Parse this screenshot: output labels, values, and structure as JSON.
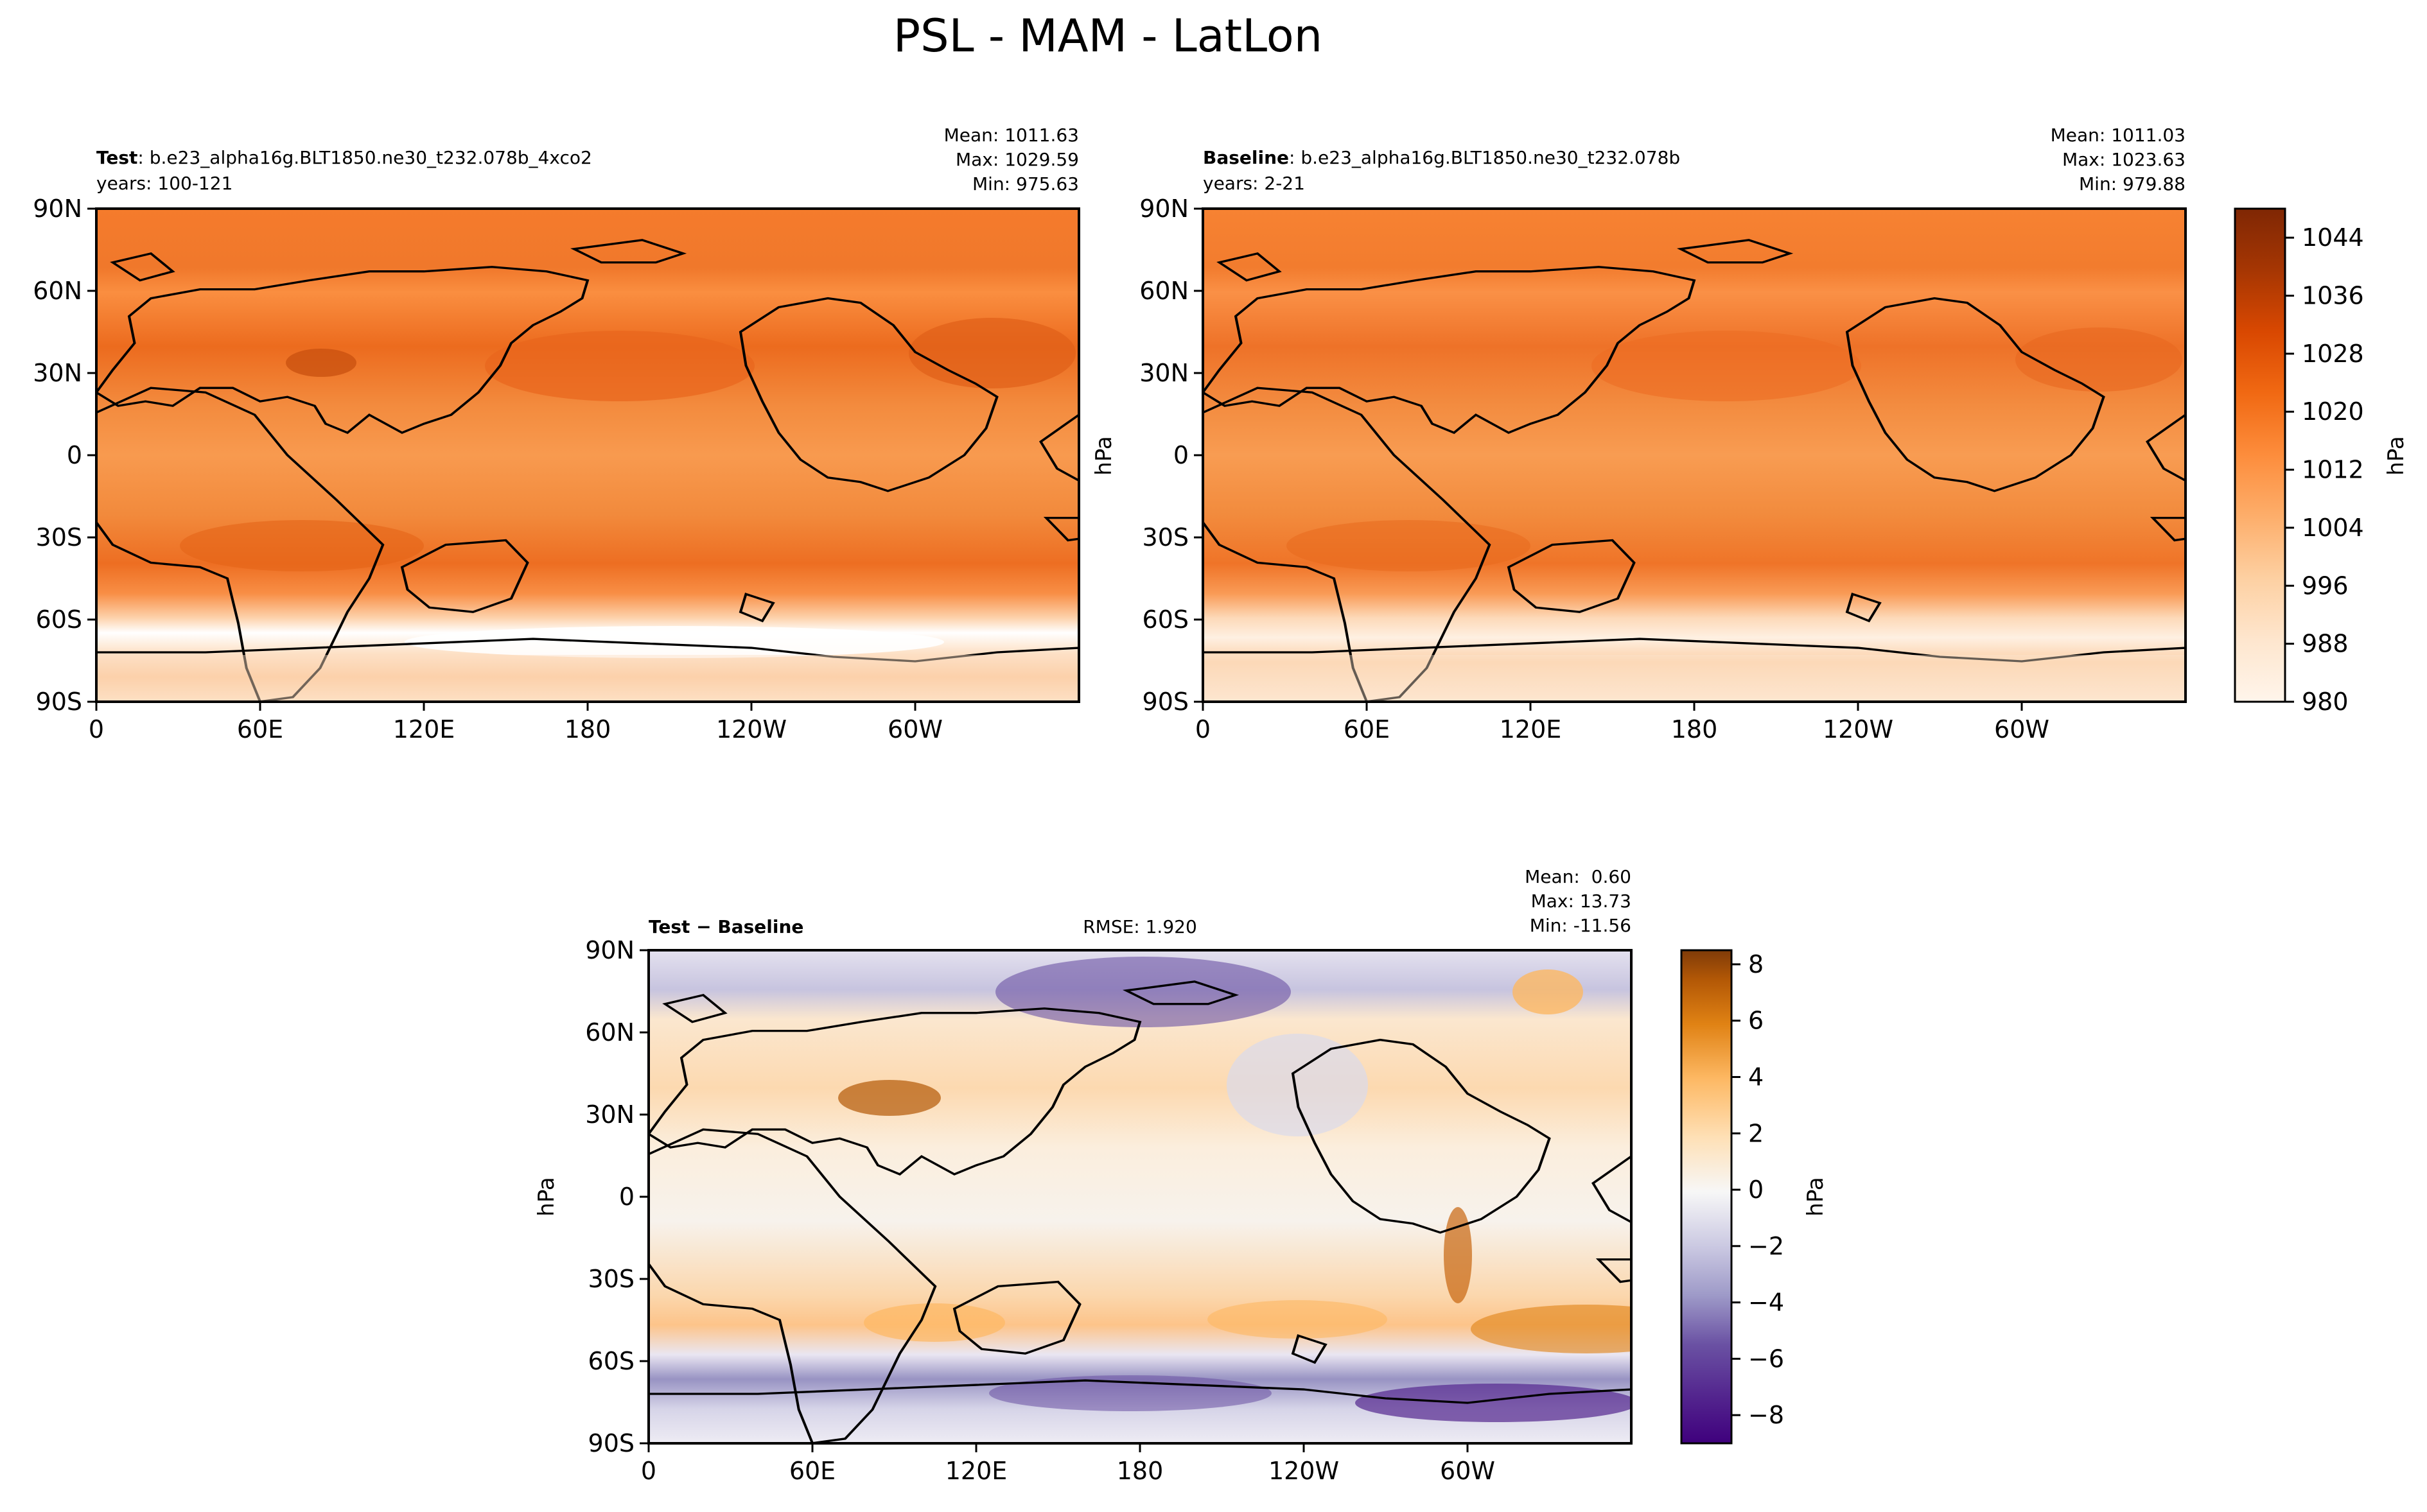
{
  "figure": {
    "title": "PSL - MAM - LatLon"
  },
  "colors": {
    "psl_scale": [
      "#fff5eb",
      "#fee6ce",
      "#fdd0a2",
      "#fdae6b",
      "#fd8d3c",
      "#f16913",
      "#d94801",
      "#a63603",
      "#7f2704"
    ],
    "diff_scale_neg": [
      "#3f007d",
      "#54278f",
      "#6a51a3",
      "#807dba",
      "#9e9ac8",
      "#bcbddc",
      "#dadaeb",
      "#efedf5",
      "#f7f7f7"
    ],
    "diff_scale_pos": [
      "#f7f7f7",
      "#fee0b6",
      "#fdb863",
      "#e08214",
      "#b35806",
      "#7f3b08"
    ],
    "land_outline": "#000000"
  },
  "chart_data": [
    {
      "type": "heatmap",
      "panel": "test",
      "label_bold": "Test",
      "label_text": ": b.e23_alpha16g.BLT1850.ne30_t232.078b_4xco2",
      "years": "years: 100-121",
      "stats": {
        "mean": "Mean: 1011.63",
        "max": "Max: 1029.59",
        "min": "Min: 975.63"
      },
      "lat_ticks": [
        "90N",
        "60N",
        "30N",
        "0",
        "30S",
        "60S",
        "90S"
      ],
      "lon_ticks": [
        "0",
        "60E",
        "120E",
        "180",
        "120W",
        "60W"
      ],
      "lat_range": [
        -90,
        90
      ],
      "lon_range": [
        0,
        360
      ],
      "colormap": "Oranges",
      "vmin": 980,
      "vmax": 1048,
      "zonal_mean_profile": [
        {
          "lat": 90,
          "value": 1016
        },
        {
          "lat": 60,
          "value": 1012
        },
        {
          "lat": 30,
          "value": 1019
        },
        {
          "lat": 0,
          "value": 1010
        },
        {
          "lat": -30,
          "value": 1018
        },
        {
          "lat": -45,
          "value": 1008
        },
        {
          "lat": -60,
          "value": 982
        },
        {
          "lat": -75,
          "value": 995
        },
        {
          "lat": -90,
          "value": 1000
        }
      ]
    },
    {
      "type": "heatmap",
      "panel": "baseline",
      "label_bold": "Baseline",
      "label_text": ": b.e23_alpha16g.BLT1850.ne30_t232.078b",
      "years": "years: 2-21",
      "stats": {
        "mean": "Mean: 1011.03",
        "max": "Max: 1023.63",
        "min": "Min: 979.88"
      },
      "ylabel": "hPa",
      "lat_ticks": [
        "90N",
        "60N",
        "30N",
        "0",
        "30S",
        "60S",
        "90S"
      ],
      "lon_ticks": [
        "0",
        "60E",
        "120E",
        "180",
        "120W",
        "60W"
      ],
      "lat_range": [
        -90,
        90
      ],
      "lon_range": [
        0,
        360
      ],
      "colormap": "Oranges",
      "vmin": 980,
      "vmax": 1048,
      "zonal_mean_profile": [
        {
          "lat": 90,
          "value": 1017
        },
        {
          "lat": 60,
          "value": 1012
        },
        {
          "lat": 30,
          "value": 1018
        },
        {
          "lat": 0,
          "value": 1010
        },
        {
          "lat": -30,
          "value": 1017
        },
        {
          "lat": -45,
          "value": 1008
        },
        {
          "lat": -60,
          "value": 988
        },
        {
          "lat": -75,
          "value": 996
        },
        {
          "lat": -90,
          "value": 1000
        }
      ]
    },
    {
      "type": "heatmap",
      "panel": "difference",
      "label_bold": "Test − Baseline",
      "rmse": "RMSE: 1.920",
      "stats": {
        "mean": "Mean:  0.60",
        "max": "Max: 13.73",
        "min": "Min: -11.56"
      },
      "ylabel": "hPa",
      "lat_ticks": [
        "90N",
        "60N",
        "30N",
        "0",
        "30S",
        "60S",
        "90S"
      ],
      "lon_ticks": [
        "0",
        "60E",
        "120E",
        "180",
        "120W",
        "60W"
      ],
      "lat_range": [
        -90,
        90
      ],
      "lon_range": [
        0,
        360
      ],
      "colormap": "PuOr_r",
      "vmin": -9,
      "vmax": 8.5,
      "zonal_mean_profile": [
        {
          "lat": 90,
          "value": -1
        },
        {
          "lat": 75,
          "value": -3
        },
        {
          "lat": 60,
          "value": 1
        },
        {
          "lat": 35,
          "value": 2
        },
        {
          "lat": 0,
          "value": 0
        },
        {
          "lat": -45,
          "value": 3
        },
        {
          "lat": -65,
          "value": -5
        },
        {
          "lat": -80,
          "value": -2
        },
        {
          "lat": -90,
          "value": -1
        }
      ]
    }
  ],
  "colorbars": [
    {
      "id": "psl",
      "label": "hPa",
      "ticks": [
        "980",
        "988",
        "996",
        "1004",
        "1012",
        "1020",
        "1028",
        "1036",
        "1044"
      ],
      "tick_values": [
        980,
        988,
        996,
        1004,
        1012,
        1020,
        1028,
        1036,
        1044
      ],
      "vmin": 980,
      "vmax": 1048
    },
    {
      "id": "diff",
      "label": "hPa",
      "ticks": [
        "−8",
        "−6",
        "−4",
        "−2",
        "0",
        "2",
        "4",
        "6",
        "8"
      ],
      "tick_values": [
        -8,
        -6,
        -4,
        -2,
        0,
        2,
        4,
        6,
        8
      ],
      "vmin": -9,
      "vmax": 8.5
    }
  ]
}
